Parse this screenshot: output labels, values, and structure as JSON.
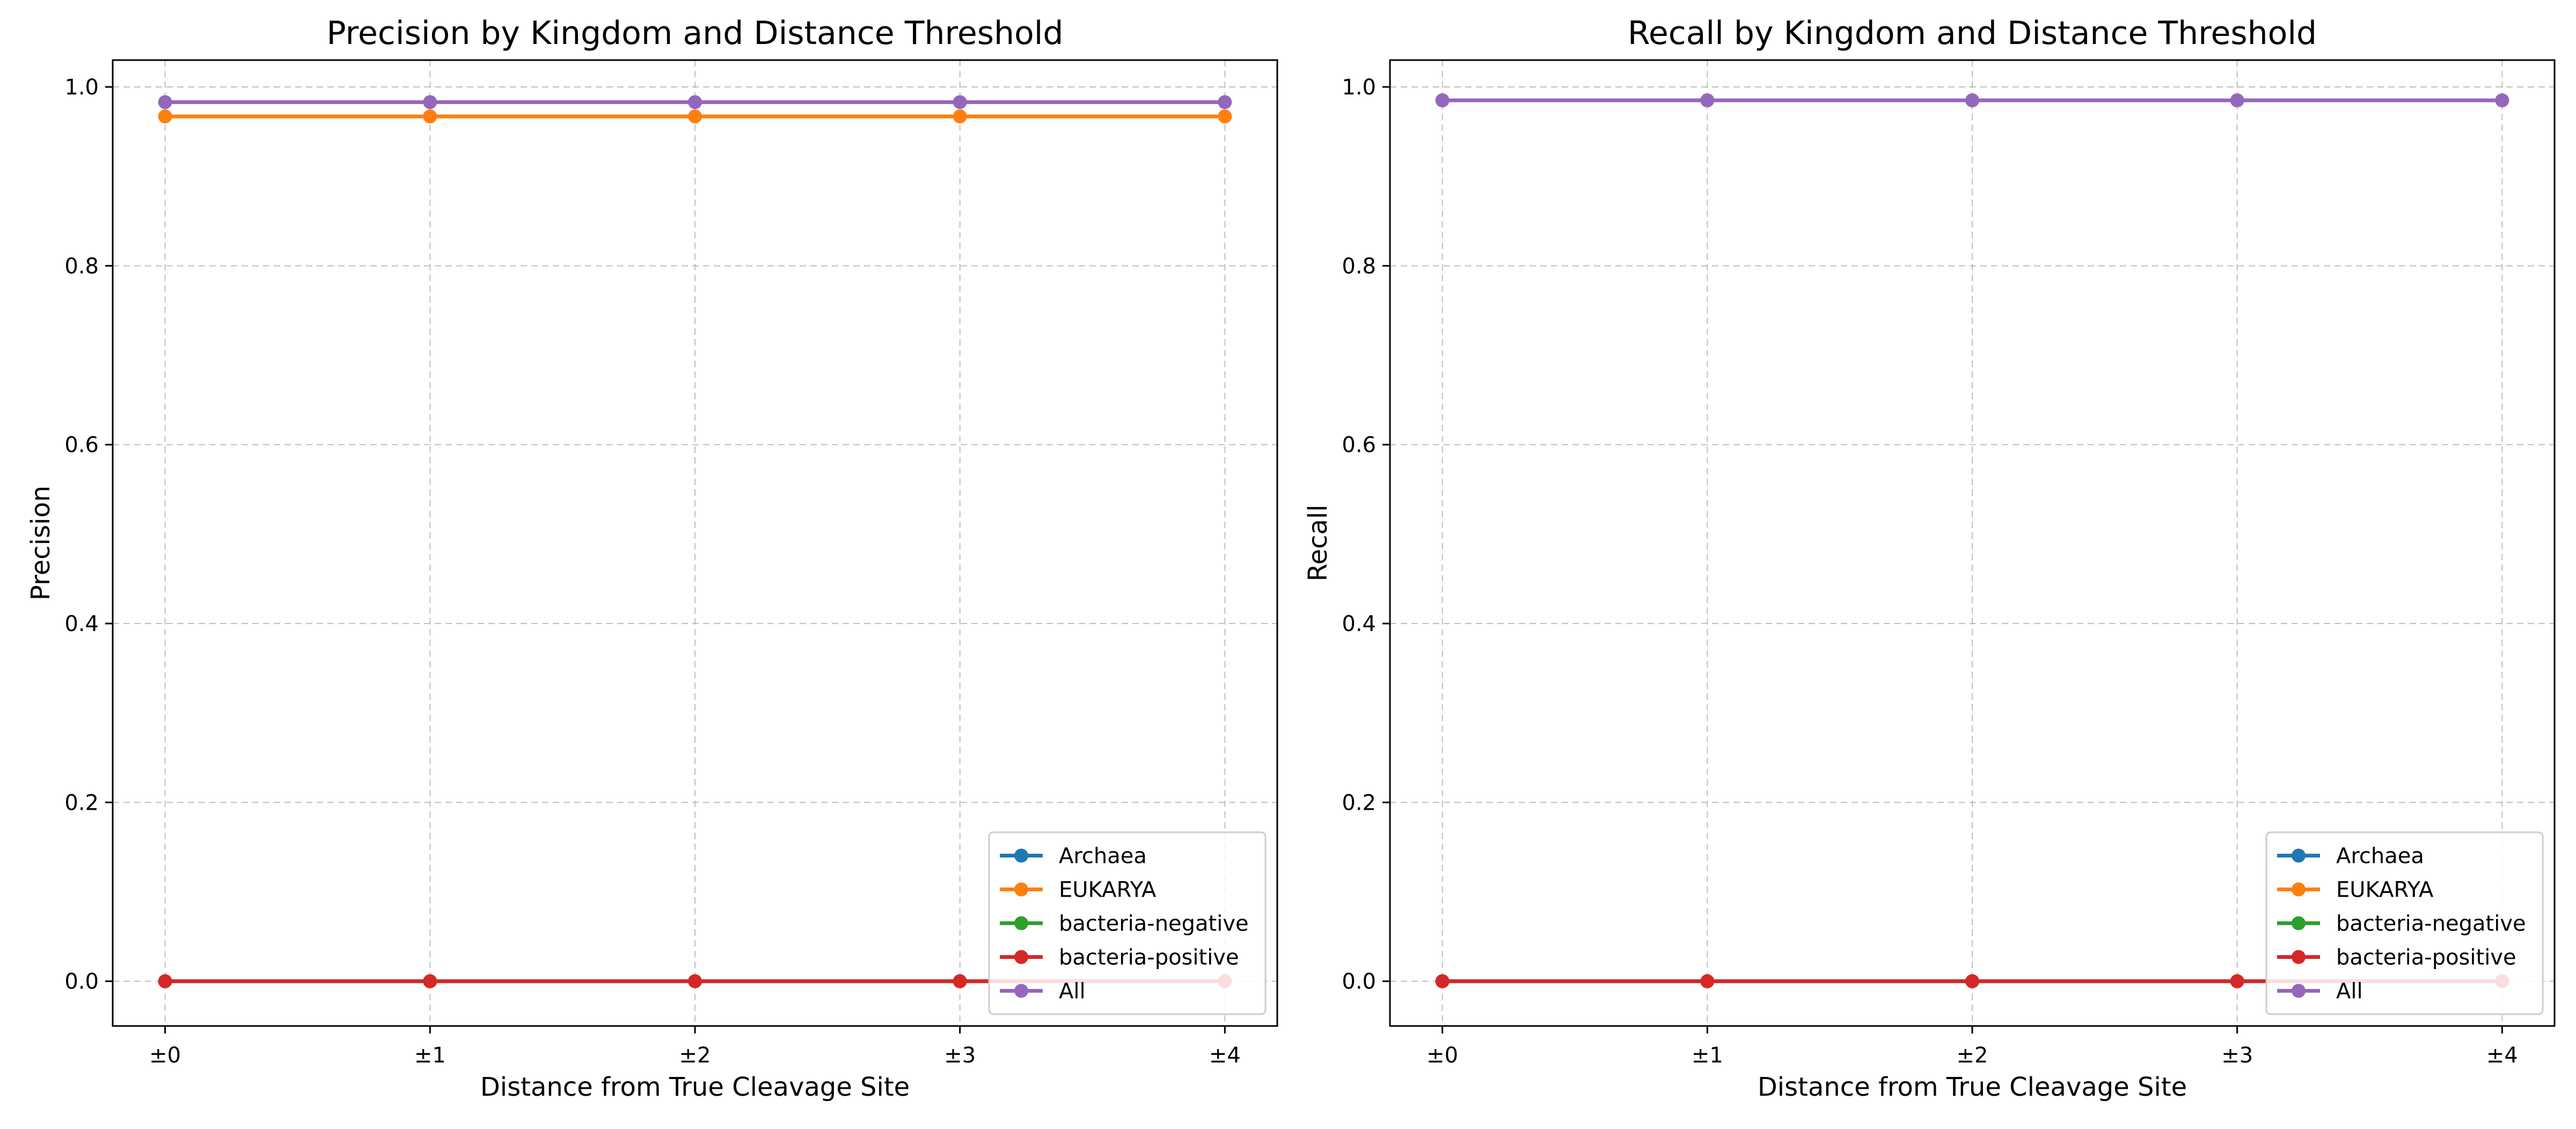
{
  "chart_data": [
    {
      "type": "line",
      "title": "Precision by Kingdom and Distance Threshold",
      "xlabel": "Distance from True Cleavage Site",
      "ylabel": "Precision",
      "categories": [
        "±0",
        "±1",
        "±2",
        "±3",
        "±4"
      ],
      "ylim": [
        -0.05,
        1.03
      ],
      "yticks": [
        0.0,
        0.2,
        0.4,
        0.6,
        0.8,
        1.0
      ],
      "ytick_labels": [
        "0.0",
        "0.2",
        "0.4",
        "0.6",
        "0.8",
        "1.0"
      ],
      "grid": true,
      "legend_position": "lower right",
      "series": [
        {
          "name": "Archaea",
          "color": "#1f77b4",
          "values": [
            0.0,
            0.0,
            0.0,
            0.0,
            0.0
          ]
        },
        {
          "name": "EUKARYA",
          "color": "#ff7f0e",
          "values": [
            0.967,
            0.967,
            0.967,
            0.967,
            0.967
          ]
        },
        {
          "name": "bacteria-negative",
          "color": "#2ca02c",
          "values": [
            0.0,
            0.0,
            0.0,
            0.0,
            0.0
          ]
        },
        {
          "name": "bacteria-positive",
          "color": "#d62728",
          "values": [
            0.0,
            0.0,
            0.0,
            0.0,
            0.0
          ]
        },
        {
          "name": "All",
          "color": "#9467bd",
          "values": [
            0.983,
            0.983,
            0.983,
            0.983,
            0.983
          ]
        }
      ]
    },
    {
      "type": "line",
      "title": "Recall by Kingdom and Distance Threshold",
      "xlabel": "Distance from True Cleavage Site",
      "ylabel": "Recall",
      "categories": [
        "±0",
        "±1",
        "±2",
        "±3",
        "±4"
      ],
      "ylim": [
        -0.05,
        1.03
      ],
      "yticks": [
        0.0,
        0.2,
        0.4,
        0.6,
        0.8,
        1.0
      ],
      "ytick_labels": [
        "0.0",
        "0.2",
        "0.4",
        "0.6",
        "0.8",
        "1.0"
      ],
      "grid": true,
      "legend_position": "lower right",
      "series": [
        {
          "name": "Archaea",
          "color": "#1f77b4",
          "values": [
            0.0,
            0.0,
            0.0,
            0.0,
            0.0
          ]
        },
        {
          "name": "EUKARYA",
          "color": "#ff7f0e",
          "values": [
            0.985,
            0.985,
            0.985,
            0.985,
            0.985
          ]
        },
        {
          "name": "bacteria-negative",
          "color": "#2ca02c",
          "values": [
            0.0,
            0.0,
            0.0,
            0.0,
            0.0
          ]
        },
        {
          "name": "bacteria-positive",
          "color": "#d62728",
          "values": [
            0.0,
            0.0,
            0.0,
            0.0,
            0.0
          ]
        },
        {
          "name": "All",
          "color": "#9467bd",
          "values": [
            0.985,
            0.985,
            0.985,
            0.985,
            0.985
          ]
        }
      ]
    }
  ]
}
